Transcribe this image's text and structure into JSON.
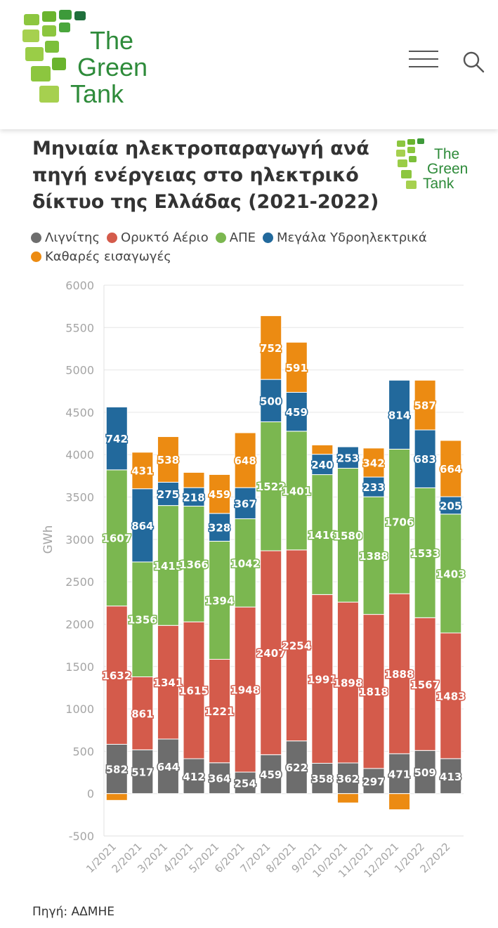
{
  "header": {
    "brand": {
      "line1": "The",
      "line2": "Green",
      "line3": "Tank"
    },
    "menu_icon": "hamburger-menu-icon",
    "search_icon": "search-icon"
  },
  "chart_title": "Μηνιαία ηλεκτροπαραγωγή ανά πηγή ενέργειας στο ηλεκτρικό δίκτυο της Ελλάδας (2021-2022)",
  "legend": [
    {
      "name": "Λιγνίτης",
      "color": "#6d6d6d"
    },
    {
      "name": "Ορυκτό Αέριο",
      "color": "#d45b4b"
    },
    {
      "name": "ΑΠΕ",
      "color": "#7bb750"
    },
    {
      "name": "Μεγάλα Υδροηλεκτρικά",
      "color": "#22699c"
    },
    {
      "name": "Καθαρές εισαγωγές",
      "color": "#ec8b12"
    }
  ],
  "chart_data": {
    "type": "bar",
    "stacked": true,
    "title": "Μηνιαία ηλεκτροπαραγωγή ανά πηγή ενέργειας στο ηλεκτρικό δίκτυο της Ελλάδας (2021-2022)",
    "xlabel": "",
    "ylabel": "GWh",
    "ylim": [
      -500,
      6000
    ],
    "yticks": [
      6000,
      5500,
      5000,
      4500,
      4000,
      3500,
      3000,
      2500,
      2000,
      1500,
      1000,
      500,
      0,
      -500
    ],
    "grid": true,
    "categories": [
      "1/2021",
      "2/2021",
      "3/2021",
      "4/2021",
      "5/2021",
      "6/2021",
      "7/2021",
      "8/2021",
      "9/2021",
      "10/2021",
      "11/2021",
      "12/2021",
      "1/2022",
      "2/2022"
    ],
    "series": [
      {
        "name": "Λιγνίτης",
        "color": "#6d6d6d",
        "values": [
          582,
          517,
          644,
          412,
          364,
          254,
          459,
          622,
          358,
          362,
          297,
          471,
          509,
          413
        ],
        "labels": [
          "582",
          "517",
          "644",
          "412",
          "364",
          "254",
          "459",
          "622",
          "358",
          "362",
          "297",
          "471",
          "509",
          "413"
        ]
      },
      {
        "name": "Ορυκτό Αέριο",
        "color": "#d45b4b",
        "values": [
          1632,
          861,
          1341,
          1615,
          1221,
          1948,
          2407,
          2254,
          1991,
          1898,
          1818,
          1888,
          1567,
          1483
        ],
        "labels": [
          "1632",
          "861",
          "1341",
          "1615",
          "1221",
          "1948",
          "2407",
          "2254",
          "1991",
          "1898",
          "1818",
          "1888",
          "1567",
          "1483"
        ]
      },
      {
        "name": "ΑΠΕ",
        "color": "#7bb750",
        "values": [
          1607,
          1356,
          1415,
          1366,
          1394,
          1042,
          1522,
          1401,
          1416,
          1580,
          1388,
          1706,
          1533,
          1403
        ],
        "labels": [
          "1607",
          "1356",
          "1415",
          "1366",
          "1394",
          "1042",
          "1522",
          "1401",
          "1416",
          "1580",
          "1388",
          "1706",
          "1533",
          "1403"
        ]
      },
      {
        "name": "Μεγάλα Υδροηλεκτρικά",
        "color": "#22699c",
        "values": [
          742,
          864,
          275,
          218,
          328,
          367,
          500,
          459,
          240,
          253,
          233,
          814,
          683,
          205
        ],
        "labels": [
          "742",
          "864",
          "275",
          "218",
          "328",
          "367",
          "500",
          "459",
          "240",
          "253",
          "233",
          "814",
          "683",
          "205"
        ]
      },
      {
        "name": "Καθαρές εισαγωγές",
        "color": "#ec8b12",
        "values": [
          -80,
          431,
          538,
          180,
          459,
          648,
          752,
          591,
          110,
          -110,
          342,
          -190,
          587,
          664
        ],
        "labels": [
          "",
          "431",
          "538",
          "",
          "459",
          "648",
          "752",
          "591",
          "",
          "",
          "342",
          "",
          "587",
          "664"
        ]
      }
    ]
  },
  "source": "Πηγή: ΑΔΜΗΕ"
}
